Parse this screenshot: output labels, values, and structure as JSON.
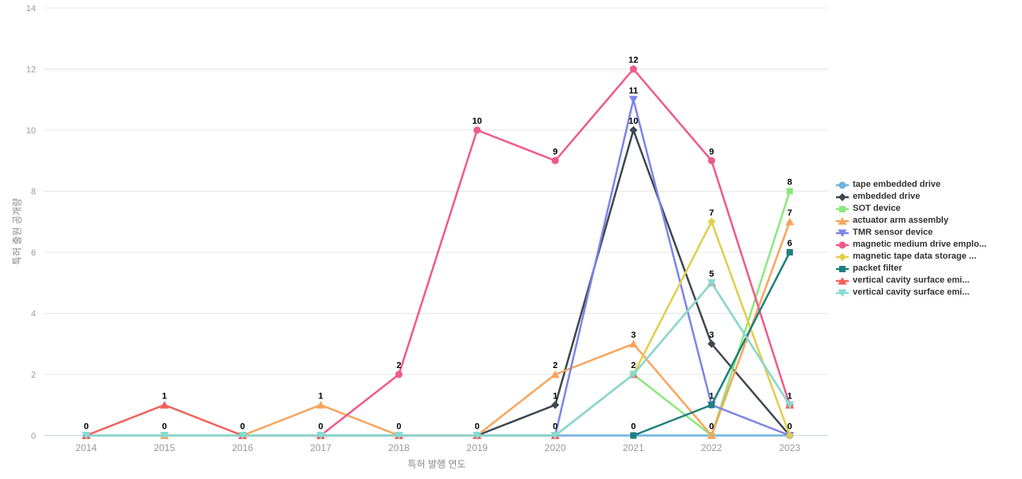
{
  "chart_data": {
    "type": "line",
    "title": "",
    "xlabel": "특허 발행 연도",
    "ylabel": "특허 출원 공개량",
    "categories": [
      "2014",
      "2015",
      "2016",
      "2017",
      "2018",
      "2019",
      "2020",
      "2021",
      "2022",
      "2023"
    ],
    "yticks": [
      0,
      2,
      4,
      6,
      8,
      10,
      12,
      14
    ],
    "ylim": [
      0,
      14
    ],
    "grid": true,
    "legend_position": "right",
    "colors": {
      "grid_line": "#e6e6e6",
      "axis_zero_line": "#c9d4ea",
      "tick_label": "#999999",
      "axis_title": "#888888",
      "data_label": "#000000",
      "legend_label": "#333333"
    },
    "series": [
      {
        "name": "tape embedded drive",
        "color": "#6FB1DC",
        "marker": "circle",
        "values": [
          0,
          0,
          0,
          0,
          0,
          0,
          0,
          0,
          0,
          0
        ]
      },
      {
        "name": "embedded drive",
        "color": "#3F474F",
        "marker": "diamond",
        "values": [
          null,
          null,
          null,
          null,
          null,
          0,
          1,
          10,
          3,
          0
        ]
      },
      {
        "name": "SOT device",
        "color": "#8BE87C",
        "marker": "square",
        "values": [
          null,
          null,
          null,
          null,
          null,
          null,
          0,
          2,
          0,
          8
        ]
      },
      {
        "name": "actuator arm assembly",
        "color": "#F9A45C",
        "marker": "triangle-up",
        "values": [
          0,
          0,
          0,
          1,
          0,
          0,
          2,
          3,
          0,
          7
        ]
      },
      {
        "name": "TMR sensor device",
        "color": "#7C84E8",
        "marker": "triangle-down",
        "values": [
          null,
          null,
          null,
          null,
          null,
          null,
          0,
          11,
          1,
          0
        ]
      },
      {
        "name": "magnetic medium drive emplo...",
        "color": "#EE5A8C",
        "marker": "circle",
        "values": [
          null,
          null,
          null,
          0,
          2,
          10,
          9,
          12,
          9,
          1
        ]
      },
      {
        "name": "magnetic tape data storage ...",
        "color": "#E3CD4B",
        "marker": "diamond",
        "values": [
          null,
          null,
          null,
          null,
          null,
          null,
          null,
          2,
          7,
          0
        ]
      },
      {
        "name": "packet filter",
        "color": "#1F807E",
        "marker": "square",
        "values": [
          null,
          null,
          null,
          null,
          null,
          null,
          null,
          0,
          1,
          6
        ]
      },
      {
        "name": "vertical cavity surface emi...",
        "color": "#F2605A",
        "marker": "triangle-up",
        "values": [
          0,
          1,
          0,
          0,
          0,
          0,
          0,
          2,
          5,
          1
        ]
      },
      {
        "name": "vertical cavity surface emi...",
        "color": "#85DCD3",
        "marker": "triangle-down",
        "values": [
          0,
          0,
          0,
          0,
          0,
          0,
          0,
          2,
          5,
          1
        ]
      }
    ]
  }
}
